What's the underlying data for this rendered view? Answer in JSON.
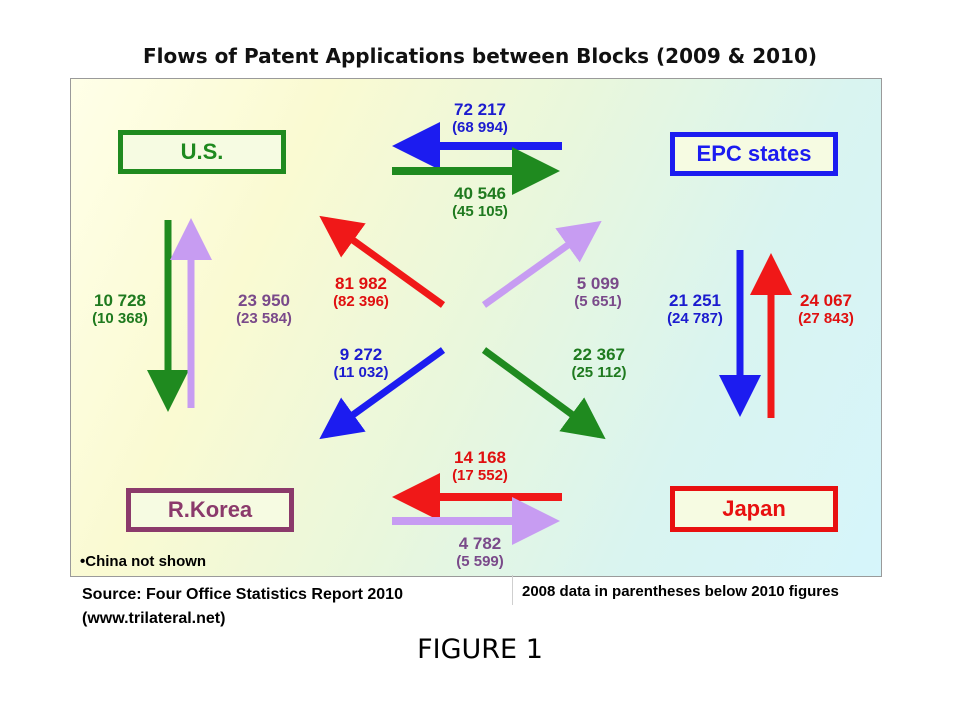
{
  "title": "Flows of Patent Applications between Blocks (2009 & 2010)",
  "blocks": {
    "us": "U.S.",
    "epc": "EPC states",
    "korea": "R.Korea",
    "japan": "Japan"
  },
  "flows": {
    "epc_to_us": {
      "value": "72 217",
      "prior": "(68 994)",
      "color": "#1c1ccf"
    },
    "us_to_epc": {
      "value": "40 546",
      "prior": "(45 105)",
      "color": "#1f7a1f"
    },
    "us_to_korea": {
      "value": "10 728",
      "prior": "(10 368)",
      "color": "#1f7a1f"
    },
    "korea_to_us": {
      "value": "23 950",
      "prior": "(23 584)",
      "color": "#7a4a8a"
    },
    "japan_to_us": {
      "value": "81 982",
      "prior": "(82 396)",
      "color": "#e01010"
    },
    "korea_to_epc": {
      "value": "5 099",
      "prior": "(5 651)",
      "color": "#7a4a8a"
    },
    "epc_to_japan": {
      "value": "21 251",
      "prior": "(24 787)",
      "color": "#1c1ccf"
    },
    "japan_to_epc": {
      "value": "24 067",
      "prior": "(27 843)",
      "color": "#e01010"
    },
    "epc_to_korea": {
      "value": "9 272",
      "prior": "(11 032)",
      "color": "#1c1ccf"
    },
    "us_to_japan": {
      "value": "22 367",
      "prior": "(25 112)",
      "color": "#1f7a1f"
    },
    "japan_to_korea": {
      "value": "14 168",
      "prior": "(17 552)",
      "color": "#e01010"
    },
    "korea_to_japan": {
      "value": "4 782",
      "prior": "(5 599)",
      "color": "#7a4a8a"
    }
  },
  "arrow_colors": {
    "blue": "#1c1cf0",
    "green": "#1f8a1f",
    "red": "#f01818",
    "purple": "#c79cf2"
  },
  "notes": {
    "china": "•China not shown",
    "source_line1": "Source: Four Office Statistics Report 2010",
    "source_line2": "(www.trilateral.net)",
    "parentheses": "2008 data in parentheses below 2010 figures"
  },
  "figure_label": "FIGURE 1"
}
